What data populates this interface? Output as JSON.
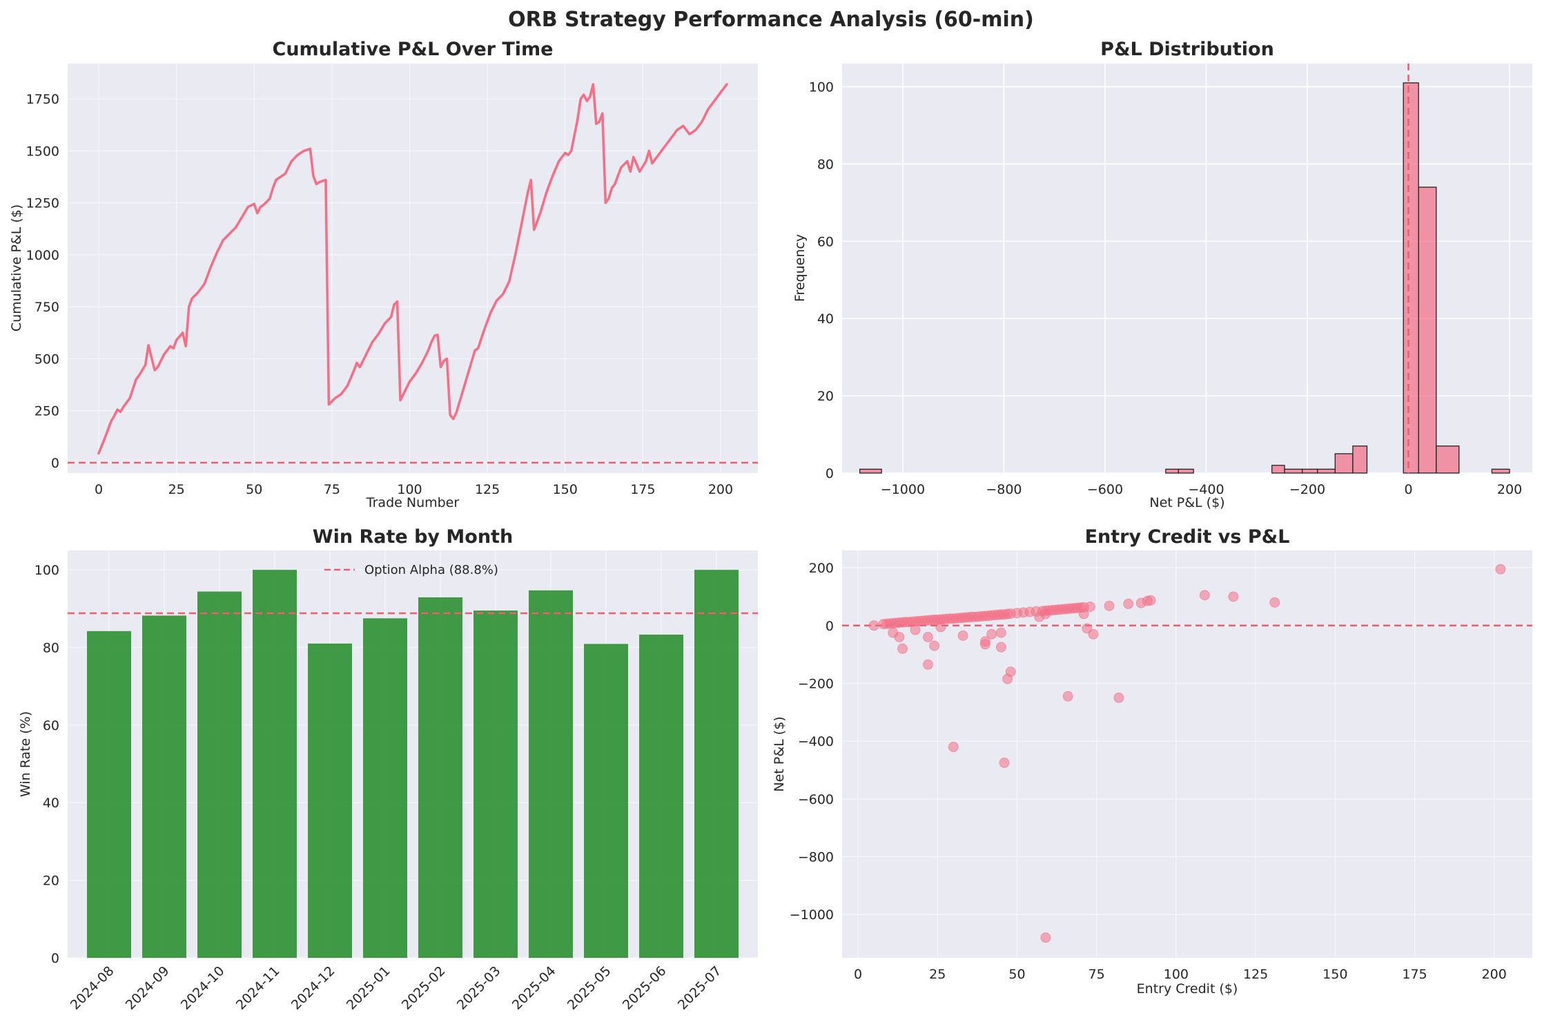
{
  "figure": {
    "title": "ORB Strategy Performance Analysis (60-min)",
    "background": "#ffffff"
  },
  "chart_data": [
    {
      "type": "line",
      "title": "Cumulative P&L Over Time",
      "xlabel": "Trade Number",
      "ylabel": "Cumulative P&L ($)",
      "xlim": [
        -10,
        212
      ],
      "ylim": [
        -50,
        1920
      ],
      "xticks": [
        0,
        25,
        50,
        75,
        100,
        125,
        150,
        175,
        200
      ],
      "yticks": [
        0,
        250,
        500,
        750,
        1000,
        1250,
        1500,
        1750
      ],
      "grid": true,
      "color": "#f37087",
      "reference_line": {
        "y": 0,
        "color": "#e8606e",
        "style": "dashed"
      },
      "series": [
        {
          "x": [
            0,
            2,
            4,
            5,
            6,
            7,
            8,
            10,
            12,
            13,
            15,
            16,
            18,
            19,
            21,
            23,
            24,
            25,
            27,
            28,
            29,
            30,
            32,
            34,
            36,
            38,
            40,
            42,
            44,
            46,
            48,
            50,
            51,
            52,
            53,
            55,
            56,
            57,
            60,
            62,
            64,
            66,
            68,
            69,
            70,
            71,
            73,
            74,
            75,
            76,
            78,
            80,
            82,
            83,
            84,
            86,
            88,
            90,
            92,
            94,
            95,
            96,
            97,
            98,
            100,
            102,
            104,
            106,
            107,
            108,
            109,
            110,
            111,
            112,
            113,
            114,
            115,
            117,
            119,
            121,
            122,
            124,
            126,
            128,
            130,
            132,
            134,
            136,
            138,
            139,
            140,
            142,
            144,
            146,
            148,
            150,
            151,
            152,
            154,
            155,
            156,
            157,
            158,
            159,
            160,
            161,
            162,
            163,
            164,
            165,
            166,
            168,
            170,
            171,
            172,
            174,
            176,
            177,
            178,
            180,
            182,
            184,
            186,
            188,
            190,
            191,
            192,
            194,
            196,
            198,
            200,
            202
          ],
          "y": [
            45,
            120,
            200,
            225,
            255,
            245,
            270,
            310,
            400,
            420,
            470,
            565,
            445,
            460,
            520,
            560,
            550,
            590,
            625,
            560,
            750,
            790,
            820,
            860,
            940,
            1010,
            1070,
            1100,
            1130,
            1180,
            1230,
            1245,
            1200,
            1230,
            1240,
            1270,
            1320,
            1360,
            1390,
            1450,
            1480,
            1500,
            1510,
            1380,
            1340,
            1350,
            1360,
            280,
            295,
            310,
            330,
            370,
            440,
            480,
            460,
            520,
            580,
            620,
            670,
            700,
            760,
            775,
            300,
            330,
            390,
            430,
            480,
            540,
            580,
            610,
            615,
            460,
            490,
            500,
            230,
            210,
            240,
            340,
            440,
            540,
            550,
            640,
            720,
            780,
            810,
            870,
            1000,
            1150,
            1300,
            1360,
            1120,
            1200,
            1300,
            1380,
            1450,
            1490,
            1480,
            1500,
            1650,
            1750,
            1770,
            1740,
            1760,
            1820,
            1630,
            1640,
            1680,
            1250,
            1270,
            1320,
            1340,
            1420,
            1450,
            1400,
            1470,
            1400,
            1450,
            1500,
            1440,
            1480,
            1520,
            1560,
            1600,
            1620,
            1580,
            1590,
            1600,
            1640,
            1700,
            1740,
            1780,
            1820
          ]
        }
      ]
    },
    {
      "type": "bar",
      "subtype": "histogram",
      "title": "P&L Distribution",
      "xlabel": "Net P&L ($)",
      "ylabel": "Frequency",
      "xlim": [
        -1120,
        245
      ],
      "ylim": [
        0,
        106
      ],
      "xticks": [
        -1000,
        -800,
        -600,
        -400,
        -200,
        0,
        200
      ],
      "xtick_labels": [
        "−1000",
        "−800",
        "−600",
        "−400",
        "−200",
        "0",
        "200"
      ],
      "yticks": [
        0,
        20,
        40,
        60,
        80,
        100
      ],
      "grid": true,
      "color": "#f37087",
      "edgecolor": "#222222",
      "reference_line": {
        "x": 0,
        "color": "#e8606e",
        "style": "dashed"
      },
      "bins": [
        {
          "start": -1085,
          "end": -1042,
          "count": 1
        },
        {
          "start": -480,
          "end": -455,
          "count": 1
        },
        {
          "start": -455,
          "end": -425,
          "count": 1
        },
        {
          "start": -270,
          "end": -245,
          "count": 2
        },
        {
          "start": -245,
          "end": -210,
          "count": 1
        },
        {
          "start": -210,
          "end": -180,
          "count": 1
        },
        {
          "start": -180,
          "end": -145,
          "count": 1
        },
        {
          "start": -145,
          "end": -110,
          "count": 5
        },
        {
          "start": -110,
          "end": -82,
          "count": 7
        },
        {
          "start": -10,
          "end": 20,
          "count": 101
        },
        {
          "start": 20,
          "end": 55,
          "count": 74
        },
        {
          "start": 55,
          "end": 100,
          "count": 7
        },
        {
          "start": 165,
          "end": 200,
          "count": 1
        }
      ]
    },
    {
      "type": "bar",
      "title": "Win Rate by Month",
      "xlabel": "",
      "ylabel": "Win Rate (%)",
      "ylim": [
        0,
        105
      ],
      "yticks": [
        0,
        20,
        40,
        60,
        80,
        100
      ],
      "grid": true,
      "color": "#2e9032",
      "categories": [
        "2024-08",
        "2024-09",
        "2024-10",
        "2024-11",
        "2024-12",
        "2025-01",
        "2025-02",
        "2025-03",
        "2025-04",
        "2025-05",
        "2025-06",
        "2025-07"
      ],
      "values": [
        84.2,
        88.2,
        94.4,
        100,
        81.0,
        87.5,
        92.9,
        89.5,
        94.7,
        80.9,
        83.3,
        100
      ],
      "reference_line": {
        "y": 88.8,
        "color": "#e8606e",
        "style": "dashed",
        "label": "Option Alpha (88.8%)"
      },
      "legend": "top-center"
    },
    {
      "type": "scatter",
      "title": "Entry Credit vs P&L",
      "xlabel": "Entry Credit ($)",
      "ylabel": "Net P&L ($)",
      "xlim": [
        -5,
        212
      ],
      "ylim": [
        -1150,
        260
      ],
      "xticks": [
        0,
        25,
        50,
        75,
        100,
        125,
        150,
        175,
        200
      ],
      "yticks": [
        -1000,
        -800,
        -600,
        -400,
        -200,
        0,
        200
      ],
      "ytick_labels": [
        "−1000",
        "−800",
        "−600",
        "−400",
        "−200",
        "0",
        "200"
      ],
      "grid": true,
      "color": "#f37087",
      "reference_line": {
        "y": 0,
        "color": "#e8606e",
        "style": "dashed"
      },
      "points": {
        "x": [
          5,
          8,
          9,
          10,
          11,
          12,
          13,
          14,
          15,
          16,
          17,
          18,
          19,
          20,
          21,
          22,
          23,
          24,
          25,
          26,
          27,
          28,
          29,
          30,
          31,
          32,
          33,
          34,
          35,
          36,
          37,
          38,
          39,
          40,
          41,
          42,
          43,
          44,
          45,
          46,
          47,
          48,
          50,
          52,
          54,
          56,
          58,
          59,
          60,
          61,
          62,
          63,
          64,
          65,
          66,
          67,
          68,
          69,
          70,
          71,
          73,
          79,
          85,
          89,
          91,
          92,
          109,
          118,
          131,
          202,
          11,
          13,
          14,
          18,
          22,
          22,
          24,
          26,
          33,
          40,
          40,
          42,
          45,
          45,
          47,
          48,
          57,
          59,
          71,
          72,
          74,
          30,
          46,
          66,
          82,
          59
        ],
        "y": [
          0,
          5,
          6,
          7,
          8,
          9,
          10,
          11,
          12,
          12,
          13,
          14,
          15,
          16,
          17,
          18,
          19,
          20,
          20,
          21,
          22,
          23,
          24,
          24,
          25,
          26,
          27,
          28,
          29,
          30,
          30,
          31,
          32,
          33,
          34,
          35,
          36,
          37,
          38,
          38,
          40,
          41,
          43,
          45,
          47,
          49,
          50,
          51,
          52,
          53,
          54,
          55,
          56,
          57,
          58,
          59,
          60,
          61,
          62,
          63,
          65,
          68,
          75,
          78,
          85,
          87,
          105,
          100,
          80,
          195,
          -25,
          -40,
          -80,
          -15,
          -40,
          -135,
          -70,
          -5,
          -35,
          -55,
          -65,
          -30,
          -25,
          -75,
          -185,
          -160,
          30,
          40,
          40,
          -10,
          -30,
          -420,
          -475,
          -245,
          -250,
          -1080
        ]
      }
    }
  ]
}
